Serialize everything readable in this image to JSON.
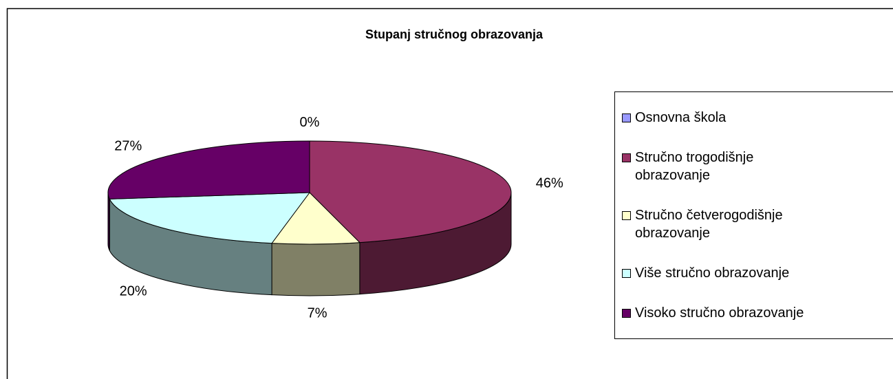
{
  "chart_data": {
    "type": "pie",
    "title": "Stupanj stručnog obrazovanja",
    "categories": [
      "Osnovna škola",
      "Stručno trogodišnje obrazovanje",
      "Stručno četverogodišnje obrazovanje",
      "Više stručno obrazovanje",
      "Visoko stručno obrazovanje"
    ],
    "values": [
      0,
      46,
      7,
      20,
      27
    ],
    "value_labels": [
      "0%",
      "46%",
      "7%",
      "20%",
      "27%"
    ],
    "colors": [
      "#9999ff",
      "#993366",
      "#ffffcc",
      "#ccffff",
      "#660066"
    ],
    "legend": "right"
  }
}
